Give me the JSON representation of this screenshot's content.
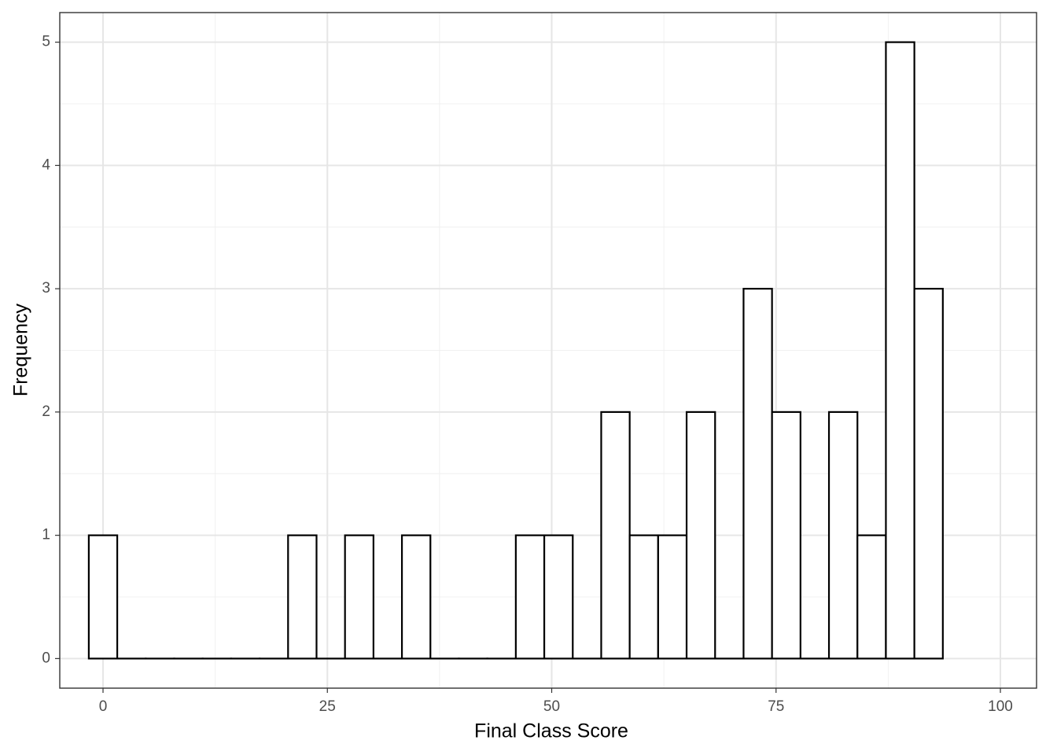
{
  "chart_data": {
    "type": "histogram",
    "x_label": "Final Class Score",
    "y_label": "Frequency",
    "bins": [
      -1.586,
      1.586,
      4.759,
      7.931,
      11.103,
      14.276,
      17.448,
      20.621,
      23.793,
      26.966,
      30.138,
      33.31,
      36.483,
      39.655,
      42.828,
      46.0,
      49.172,
      52.345,
      55.517,
      58.69,
      61.862,
      65.034,
      68.207,
      71.379,
      74.552,
      77.724,
      80.897,
      84.069,
      87.241,
      90.414,
      93.586
    ],
    "values": [
      1,
      0,
      0,
      0,
      0,
      0,
      0,
      1,
      0,
      1,
      0,
      1,
      0,
      0,
      0,
      1,
      1,
      0,
      2,
      1,
      1,
      2,
      0,
      3,
      2,
      0,
      2,
      1,
      5,
      3
    ],
    "fill": "#ffffff",
    "edge_color": "#000000",
    "xlim": [
      -4.82,
      104.03
    ],
    "xticks": [
      0,
      25,
      50,
      75,
      100
    ],
    "ylim": [
      -0.24,
      5.24
    ],
    "yticks": [
      0,
      1,
      2,
      3,
      4,
      5
    ],
    "grid": true
  }
}
